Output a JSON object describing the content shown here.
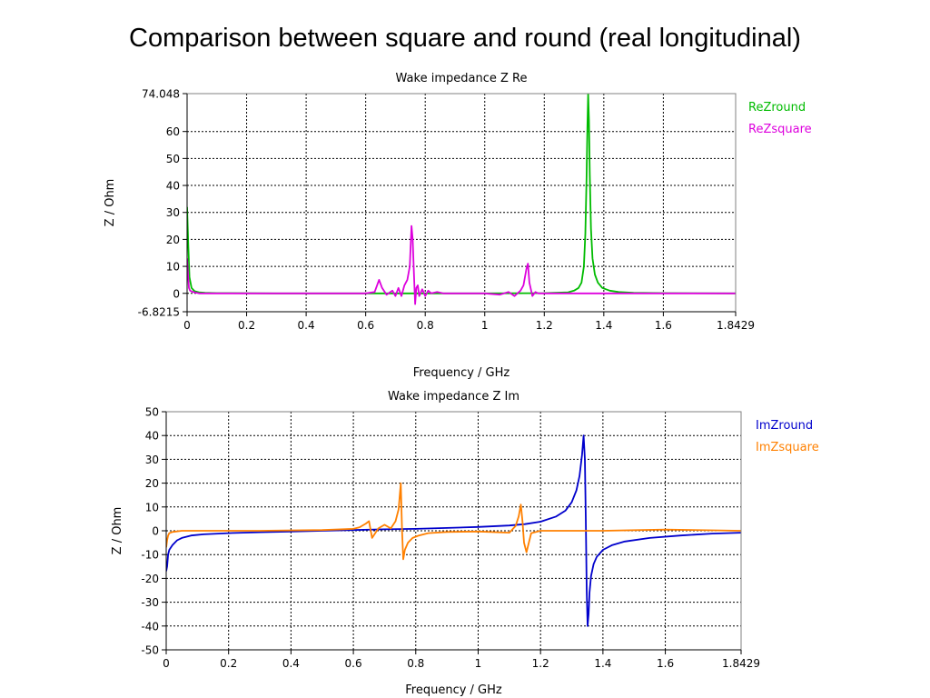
{
  "page": {
    "title": "Comparison between square and round (real longitudinal)"
  },
  "chart_data": [
    {
      "id": "re",
      "type": "line",
      "title": "Wake impedance Z Re",
      "xlabel": "Frequency / GHz",
      "ylabel": "Z / Ohm",
      "xlim": [
        0,
        1.8429
      ],
      "ylim": [
        -6.8215,
        74.048
      ],
      "xticks": [
        0,
        0.2,
        0.4,
        0.6,
        0.8,
        1,
        1.2,
        1.4,
        1.6,
        1.8429
      ],
      "xtick_labels": [
        "0",
        "0.2",
        "0.4",
        "0.6",
        "0.8",
        "1",
        "1.2",
        "1.4",
        "1.6",
        "1.8429"
      ],
      "yticks": [
        -6.8215,
        0,
        10,
        20,
        30,
        40,
        50,
        60,
        74.048
      ],
      "ytick_labels": [
        "-6.8215",
        "0",
        "10",
        "20",
        "30",
        "40",
        "50",
        "60",
        "74.048"
      ],
      "grid": true,
      "legend_position": "right",
      "series": [
        {
          "name": "ReZround",
          "color": "#00bb00",
          "x": [
            0,
            0.004,
            0.008,
            0.015,
            0.025,
            0.04,
            0.06,
            0.1,
            0.3,
            0.6,
            1.0,
            1.2,
            1.28,
            1.3,
            1.315,
            1.325,
            1.333,
            1.338,
            1.342,
            1.345,
            1.3475,
            1.35,
            1.353,
            1.357,
            1.362,
            1.37,
            1.38,
            1.395,
            1.42,
            1.45,
            1.5,
            1.6,
            1.8429
          ],
          "y": [
            32,
            18,
            6,
            2,
            0.8,
            0.4,
            0.2,
            0.1,
            0,
            0,
            0,
            0.1,
            0.4,
            1,
            2,
            4,
            10,
            22,
            42,
            62,
            74,
            64,
            44,
            24,
            13,
            7,
            4,
            2,
            1,
            0.5,
            0.2,
            0.1,
            0
          ]
        },
        {
          "name": "ReZsquare",
          "color": "#dd00dd",
          "x": [
            0,
            0.003,
            0.006,
            0.01,
            0.02,
            0.04,
            0.07,
            0.1,
            0.3,
            0.6,
            0.63,
            0.645,
            0.655,
            0.67,
            0.69,
            0.7,
            0.71,
            0.72,
            0.73,
            0.74,
            0.748,
            0.754,
            0.758,
            0.762,
            0.766,
            0.77,
            0.775,
            0.78,
            0.79,
            0.8,
            0.81,
            0.82,
            0.84,
            0.86,
            0.9,
            1.0,
            1.05,
            1.08,
            1.1,
            1.12,
            1.13,
            1.14,
            1.145,
            1.15,
            1.16,
            1.17,
            1.18,
            1.2,
            1.25,
            1.4,
            1.8429
          ],
          "y": [
            13,
            7,
            2,
            1,
            0.5,
            0,
            0,
            0,
            0,
            0,
            0.5,
            5,
            2,
            -0.5,
            1,
            -1,
            2,
            -1,
            3,
            5,
            10,
            25,
            20,
            8,
            -4,
            2,
            3,
            -1,
            1.5,
            -1,
            1,
            0,
            0.5,
            0,
            0,
            0,
            -0.5,
            0.5,
            -1,
            1,
            3,
            9,
            11,
            4,
            -1,
            0.5,
            0,
            0,
            0,
            0,
            0
          ]
        }
      ]
    },
    {
      "id": "im",
      "type": "line",
      "title": "Wake impedance Z Im",
      "xlabel": "Frequency / GHz",
      "ylabel": "Z / Ohm",
      "xlim": [
        0,
        1.8429
      ],
      "ylim": [
        -50,
        50
      ],
      "xticks": [
        0,
        0.2,
        0.4,
        0.6,
        0.8,
        1,
        1.2,
        1.4,
        1.6,
        1.8429
      ],
      "xtick_labels": [
        "0",
        "0.2",
        "0.4",
        "0.6",
        "0.8",
        "1",
        "1.2",
        "1.4",
        "1.6",
        "1.8429"
      ],
      "yticks": [
        -50,
        -40,
        -30,
        -20,
        -10,
        0,
        10,
        20,
        30,
        40,
        50
      ],
      "ytick_labels": [
        "-50",
        "-40",
        "-30",
        "-20",
        "-10",
        "0",
        "10",
        "20",
        "30",
        "40",
        "50"
      ],
      "grid": true,
      "legend_position": "right",
      "series": [
        {
          "name": "ImZround",
          "color": "#0000cc",
          "x": [
            0,
            0.003,
            0.006,
            0.01,
            0.02,
            0.035,
            0.05,
            0.08,
            0.12,
            0.2,
            0.3,
            0.4,
            0.5,
            0.6,
            0.7,
            0.8,
            0.9,
            1.0,
            1.1,
            1.15,
            1.2,
            1.25,
            1.28,
            1.3,
            1.315,
            1.325,
            1.333,
            1.338,
            1.342,
            1.345,
            1.348,
            1.351,
            1.354,
            1.357,
            1.362,
            1.37,
            1.38,
            1.4,
            1.43,
            1.47,
            1.55,
            1.65,
            1.75,
            1.8429
          ],
          "y": [
            -17,
            -15,
            -10,
            -8,
            -6,
            -4,
            -3,
            -2,
            -1.5,
            -1,
            -0.6,
            -0.3,
            0,
            0.3,
            0.6,
            0.8,
            1.2,
            1.6,
            2.2,
            2.8,
            3.8,
            6,
            8.5,
            12,
            17,
            23,
            32,
            40,
            30,
            5,
            -25,
            -40,
            -35,
            -26,
            -19,
            -14,
            -11,
            -8,
            -6,
            -4.5,
            -3,
            -2,
            -1.2,
            -0.8
          ]
        },
        {
          "name": "ImZsquare",
          "color": "#ff8000",
          "x": [
            0,
            0.003,
            0.006,
            0.01,
            0.02,
            0.05,
            0.1,
            0.3,
            0.5,
            0.6,
            0.62,
            0.64,
            0.65,
            0.66,
            0.68,
            0.7,
            0.72,
            0.735,
            0.745,
            0.752,
            0.756,
            0.76,
            0.765,
            0.775,
            0.79,
            0.81,
            0.84,
            0.9,
            1.0,
            1.1,
            1.12,
            1.13,
            1.137,
            1.142,
            1.147,
            1.155,
            1.17,
            1.2,
            1.3,
            1.4,
            1.6,
            1.8429
          ],
          "y": [
            -7,
            -4,
            -2,
            -1,
            -0.5,
            0,
            0,
            0,
            0.3,
            0.8,
            1.5,
            3,
            4,
            -3,
            1,
            2.5,
            1,
            4,
            9,
            20,
            0,
            -12,
            -8,
            -5,
            -3,
            -2,
            -1,
            -0.5,
            -0.3,
            -0.8,
            2,
            6,
            11,
            4,
            -5,
            -9,
            -1,
            0,
            0,
            0,
            0.5,
            0
          ]
        }
      ]
    }
  ]
}
